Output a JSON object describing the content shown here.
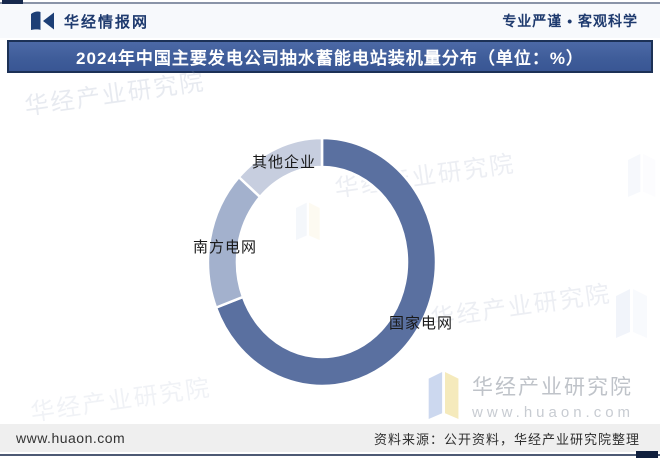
{
  "header": {
    "site_name": "华经情报网",
    "tagline": "专业严谨 • 客观科学"
  },
  "title_bar": {
    "title": "2024年中国主要发电公司抽水蓄能电站装机量分布（单位：%）"
  },
  "chart_data": {
    "type": "pie",
    "subtype": "donut",
    "title": "2024年中国主要发电公司抽水蓄能电站装机量分布",
    "unit": "%",
    "direction": "clockwise",
    "start_angle_deg": 0,
    "legend_position": "none",
    "labels_shown": "category-names-only",
    "segments": [
      {
        "key": "state-grid",
        "name": "国家电网",
        "value": 69,
        "color": "#5a70a0"
      },
      {
        "key": "southern-grid",
        "name": "南方电网",
        "value": 18,
        "color": "#a3b1cd"
      },
      {
        "key": "other",
        "name": "其他企业",
        "value": 13,
        "color": "#c7cedf"
      }
    ]
  },
  "watermarks": {
    "diagonal_text": "华经产业研究院",
    "brand_text": "华经产业研究院",
    "brand_url": "www.huaon.com"
  },
  "footer": {
    "site_url": "www.huaon.com",
    "source_note": "资料来源：公开资料，华经产业研究院整理"
  },
  "colors": {
    "accent_navy": "#1e3a6e",
    "title_bar_bg": "#3e5c99",
    "title_bar_border": "#1c3156",
    "footer_bg": "#efefef",
    "watermark_gray": "#bfc3c9"
  }
}
